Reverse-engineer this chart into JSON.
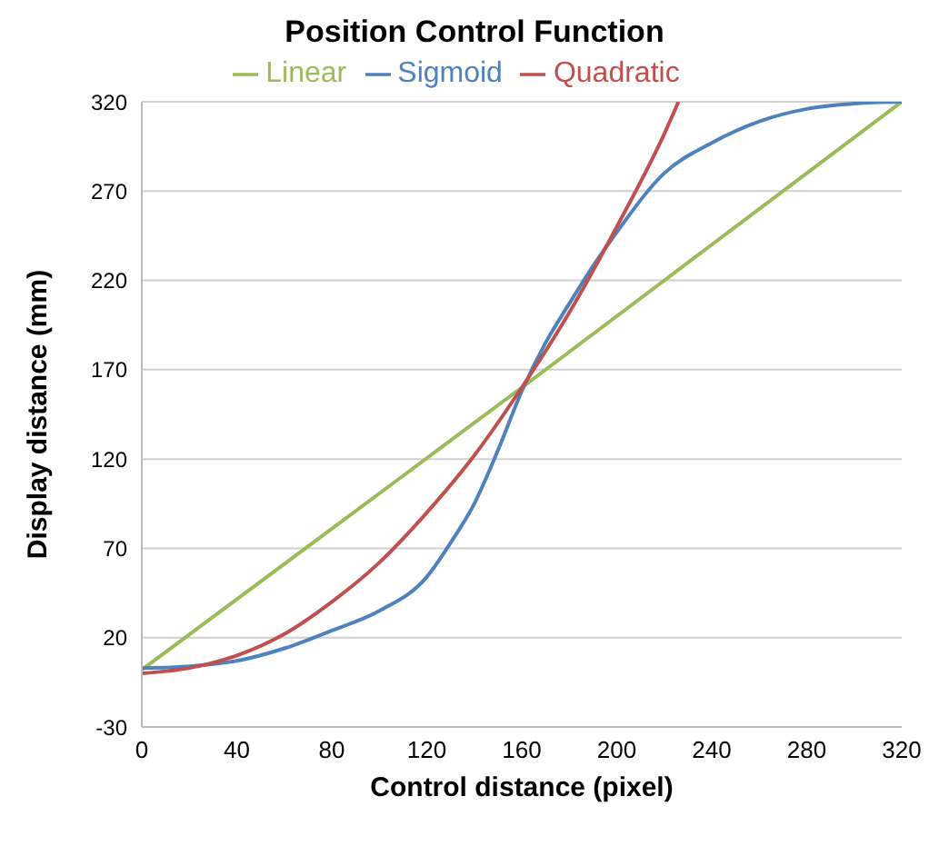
{
  "chart_data": {
    "type": "line",
    "title": "Position Control Function",
    "xlabel": "Control distance (pixel)",
    "ylabel": "Display distance (mm)",
    "xlim": [
      0,
      320
    ],
    "xticks": [
      0,
      40,
      80,
      120,
      160,
      200,
      240,
      280,
      320
    ],
    "ylim": [
      -30,
      320
    ],
    "yticks": [
      -30,
      20,
      70,
      120,
      170,
      220,
      270,
      320
    ],
    "grid": "y",
    "legend": "top",
    "marker": "none",
    "line_style": "solid",
    "series": [
      {
        "name": "Linear",
        "color": "#9bbb59",
        "x": [
          0,
          80,
          160,
          240,
          320
        ],
        "values": [
          2,
          81,
          160,
          240,
          320
        ]
      },
      {
        "name": "Sigmoid",
        "color": "#4f81bd",
        "x": [
          0,
          20,
          40,
          60,
          80,
          100,
          120,
          130,
          140,
          150,
          160,
          170,
          180,
          190,
          200,
          220,
          240,
          260,
          280,
          300,
          320
        ],
        "values": [
          3,
          4,
          7,
          14,
          24,
          35,
          54,
          73,
          95,
          125,
          158,
          185,
          207,
          228,
          247,
          280,
          297,
          309,
          316,
          319,
          320
        ]
      },
      {
        "name": "Quadratic",
        "color": "#c0504d",
        "x": [
          0,
          20,
          40,
          60,
          80,
          100,
          120,
          140,
          160,
          180,
          200,
          220,
          226
        ],
        "values": [
          0,
          3,
          10,
          22,
          40,
          62,
          90,
          122,
          160,
          202,
          250,
          302,
          320
        ]
      }
    ]
  }
}
